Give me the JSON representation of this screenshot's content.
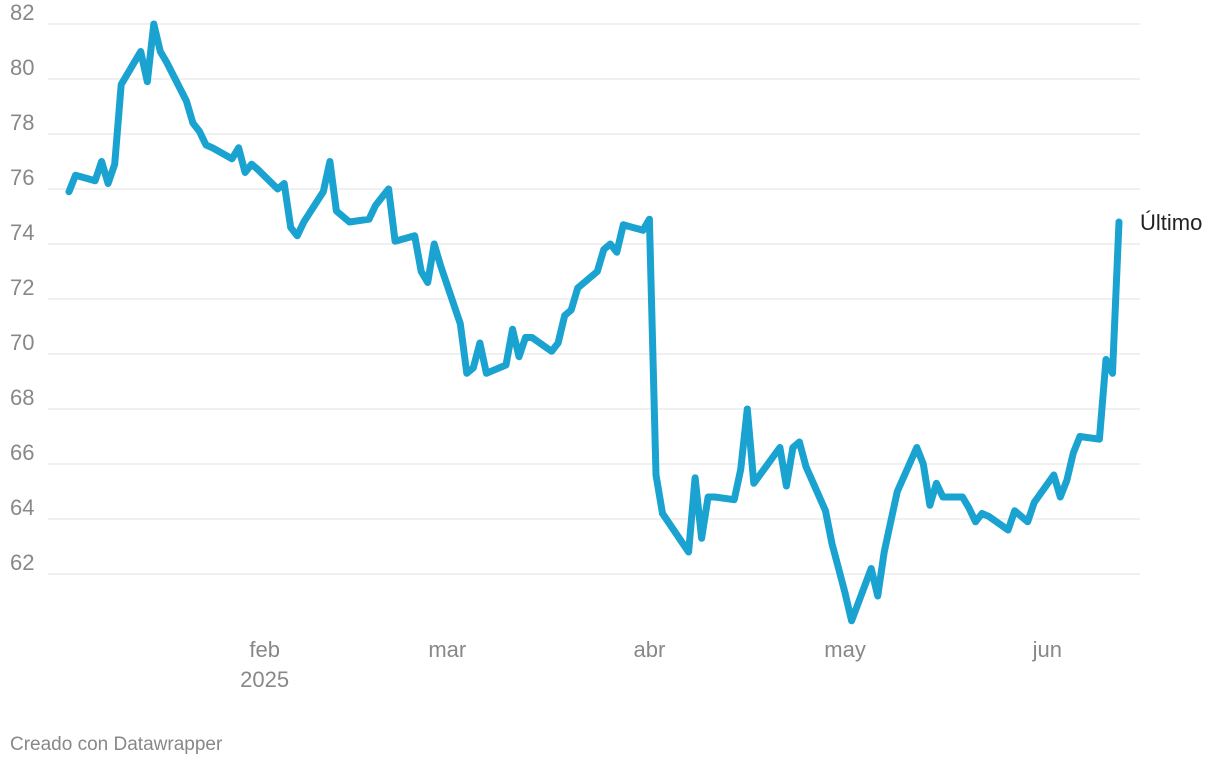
{
  "footer": {
    "credit": "Creado con Datawrapper"
  },
  "chart_data": {
    "type": "line",
    "title": "",
    "xlabel": "",
    "ylabel": "",
    "ylim": [
      60,
      82
    ],
    "yticks": [
      62,
      64,
      66,
      68,
      70,
      72,
      74,
      76,
      78,
      80,
      82
    ],
    "xlim": [
      "2025-01-02",
      "2025-06-12"
    ],
    "xticks": [
      {
        "date": "2025-02-01",
        "label": "feb"
      },
      {
        "date": "2025-03-01",
        "label": "mar"
      },
      {
        "date": "2025-04-01",
        "label": "abr"
      },
      {
        "date": "2025-05-01",
        "label": "may"
      },
      {
        "date": "2025-06-01",
        "label": "jun"
      }
    ],
    "year_label": "2025",
    "grid": true,
    "end_label": "Último",
    "line_color": "#1aa3d0",
    "series": [
      {
        "x": [
          "2025-01-02",
          "2025-01-03",
          "2025-01-06",
          "2025-01-07",
          "2025-01-08",
          "2025-01-09",
          "2025-01-10",
          "2025-01-13",
          "2025-01-14",
          "2025-01-15",
          "2025-01-16",
          "2025-01-17",
          "2025-01-20",
          "2025-01-21",
          "2025-01-22",
          "2025-01-23",
          "2025-01-24",
          "2025-01-27",
          "2025-01-28",
          "2025-01-29",
          "2025-01-30",
          "2025-01-31",
          "2025-02-03",
          "2025-02-04",
          "2025-02-05",
          "2025-02-06",
          "2025-02-07",
          "2025-02-10",
          "2025-02-11",
          "2025-02-12",
          "2025-02-13",
          "2025-02-14",
          "2025-02-17",
          "2025-02-18",
          "2025-02-19",
          "2025-02-20",
          "2025-02-21",
          "2025-02-24",
          "2025-02-25",
          "2025-02-26",
          "2025-02-27",
          "2025-02-28",
          "2025-03-03",
          "2025-03-04",
          "2025-03-05",
          "2025-03-06",
          "2025-03-07",
          "2025-03-10",
          "2025-03-11",
          "2025-03-12",
          "2025-03-13",
          "2025-03-14",
          "2025-03-17",
          "2025-03-18",
          "2025-03-19",
          "2025-03-20",
          "2025-03-21",
          "2025-03-24",
          "2025-03-25",
          "2025-03-26",
          "2025-03-27",
          "2025-03-28",
          "2025-03-31",
          "2025-04-01",
          "2025-04-02",
          "2025-04-03",
          "2025-04-07",
          "2025-04-08",
          "2025-04-09",
          "2025-04-10",
          "2025-04-11",
          "2025-04-14",
          "2025-04-15",
          "2025-04-16",
          "2025-04-17",
          "2025-04-21",
          "2025-04-22",
          "2025-04-23",
          "2025-04-24",
          "2025-04-25",
          "2025-04-28",
          "2025-04-29",
          "2025-04-30",
          "2025-05-01",
          "2025-05-02",
          "2025-05-05",
          "2025-05-06",
          "2025-05-07",
          "2025-05-08",
          "2025-05-09",
          "2025-05-12",
          "2025-05-13",
          "2025-05-14",
          "2025-05-15",
          "2025-05-16",
          "2025-05-19",
          "2025-05-20",
          "2025-05-21",
          "2025-05-22",
          "2025-05-23",
          "2025-05-26",
          "2025-05-27",
          "2025-05-28",
          "2025-05-29",
          "2025-05-30",
          "2025-06-02",
          "2025-06-03",
          "2025-06-04",
          "2025-06-05",
          "2025-06-06",
          "2025-06-09",
          "2025-06-10",
          "2025-06-11",
          "2025-06-12"
        ],
        "y": [
          75.9,
          76.5,
          76.3,
          77.0,
          76.2,
          76.9,
          79.8,
          81.0,
          79.9,
          82.0,
          81.0,
          80.6,
          79.2,
          78.4,
          78.1,
          77.6,
          77.5,
          77.1,
          77.5,
          76.6,
          76.9,
          76.7,
          76.0,
          76.2,
          74.6,
          74.3,
          74.8,
          75.9,
          77.0,
          75.2,
          75.0,
          74.8,
          74.9,
          75.4,
          75.7,
          76.0,
          74.1,
          74.3,
          73.0,
          72.6,
          74.0,
          73.2,
          71.1,
          69.3,
          69.5,
          70.4,
          69.3,
          69.6,
          70.9,
          69.9,
          70.6,
          70.6,
          70.1,
          70.4,
          71.4,
          71.6,
          72.4,
          73.0,
          73.8,
          74.0,
          73.7,
          74.7,
          74.5,
          74.9,
          65.6,
          64.2,
          62.8,
          65.5,
          63.3,
          64.8,
          64.8,
          64.7,
          65.8,
          68.0,
          65.3,
          66.6,
          65.2,
          66.6,
          66.8,
          65.9,
          64.3,
          63.1,
          62.2,
          61.3,
          60.3,
          62.2,
          61.2,
          62.8,
          63.9,
          65.0,
          66.6,
          66.0,
          64.5,
          65.3,
          64.8,
          64.8,
          64.4,
          63.9,
          64.2,
          64.1,
          63.6,
          64.3,
          64.1,
          63.9,
          64.6,
          65.6,
          64.8,
          65.4,
          66.4,
          67.0,
          66.9,
          69.8,
          69.3,
          74.8
        ]
      }
    ]
  }
}
